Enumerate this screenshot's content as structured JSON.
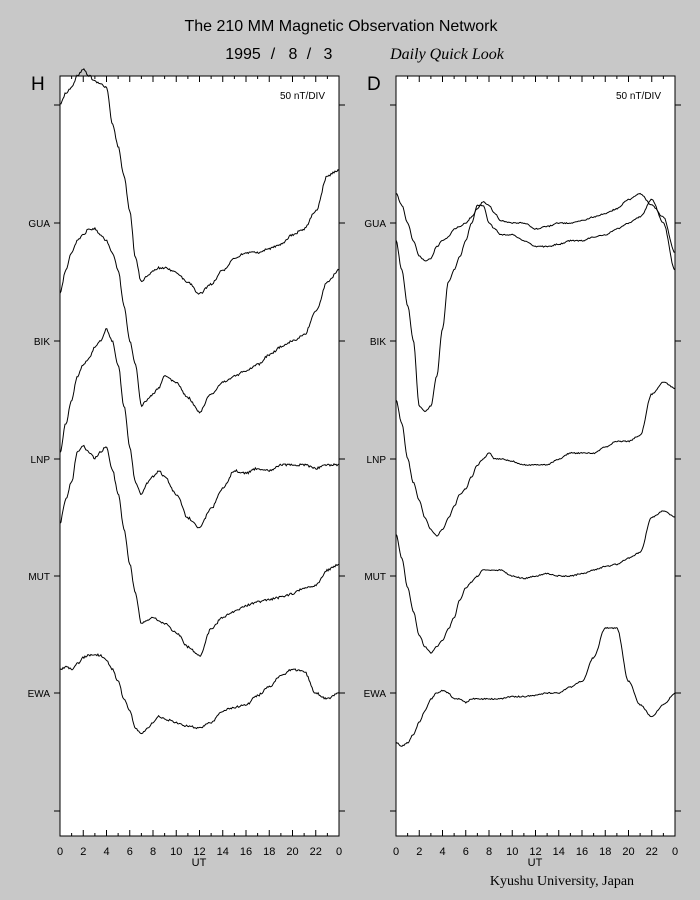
{
  "header": {
    "title": "The 210 MM Magnetic Observation Network",
    "date_year": "1995",
    "date_month": "8",
    "date_day": "3",
    "date_separator": "/",
    "subtitle": "Daily Quick Look"
  },
  "credit": "Kyushu University, Japan",
  "colors": {
    "background": "#c8c8c8",
    "plot_area": "#ffffff",
    "trace": "#000000"
  },
  "chart_data": [
    {
      "type": "line",
      "panel_label": "H",
      "scale_label": "50 nT/DIV",
      "xlabel": "UT",
      "xlim": [
        0,
        24
      ],
      "x_tick_labels": [
        "0",
        "2",
        "4",
        "6",
        "8",
        "10",
        "12",
        "14",
        "16",
        "18",
        "20",
        "22",
        "0"
      ],
      "stations": [
        "GUA",
        "BIK",
        "LNP",
        "MUT",
        "EWA"
      ],
      "y_unit": "divisions relative to station baseline",
      "series": [
        {
          "name": "GUA",
          "x": [
            0,
            0.5,
            1,
            1.5,
            2,
            2.5,
            3,
            3.5,
            4,
            4.5,
            5,
            5.5,
            6,
            6.5,
            7,
            7.5,
            8,
            8.5,
            9,
            10,
            11,
            12,
            13,
            14,
            15,
            16,
            17,
            18,
            19,
            20,
            21,
            22,
            23,
            24
          ],
          "y": [
            1.0,
            1.1,
            1.15,
            1.25,
            1.3,
            1.25,
            1.2,
            1.18,
            1.15,
            0.85,
            0.65,
            0.4,
            0.1,
            -0.3,
            -0.5,
            -0.45,
            -0.4,
            -0.38,
            -0.38,
            -0.42,
            -0.5,
            -0.6,
            -0.52,
            -0.4,
            -0.3,
            -0.25,
            -0.25,
            -0.22,
            -0.18,
            -0.1,
            -0.05,
            0.1,
            0.4,
            0.45
          ]
        },
        {
          "name": "BIK",
          "x": [
            0,
            0.5,
            1,
            1.5,
            2,
            2.5,
            3,
            3.5,
            4,
            4.5,
            5,
            5.5,
            6,
            6.5,
            7,
            7.5,
            8,
            8.5,
            9,
            10,
            11,
            12,
            13,
            14,
            15,
            16,
            17,
            18,
            19,
            20,
            21,
            22,
            23,
            24
          ],
          "y": [
            0.4,
            0.6,
            0.75,
            0.85,
            0.9,
            0.95,
            0.95,
            0.9,
            0.85,
            0.75,
            0.6,
            0.3,
            0.0,
            -0.2,
            -0.55,
            -0.5,
            -0.45,
            -0.4,
            -0.3,
            -0.35,
            -0.48,
            -0.6,
            -0.45,
            -0.35,
            -0.3,
            -0.25,
            -0.2,
            -0.12,
            -0.05,
            0.0,
            0.05,
            0.25,
            0.5,
            0.6
          ]
        },
        {
          "name": "LNP",
          "x": [
            0,
            0.5,
            1,
            1.5,
            2,
            2.5,
            3,
            3.5,
            4,
            4.5,
            5,
            5.5,
            6,
            6.5,
            7,
            7.5,
            8,
            8.5,
            9,
            10,
            11,
            12,
            13,
            14,
            15,
            16,
            17,
            18,
            19,
            20,
            21,
            22,
            23,
            24
          ],
          "y": [
            0.05,
            0.3,
            0.5,
            0.7,
            0.8,
            0.85,
            0.95,
            1.0,
            1.1,
            1.0,
            0.8,
            0.45,
            0.1,
            -0.2,
            -0.3,
            -0.2,
            -0.15,
            -0.1,
            -0.15,
            -0.3,
            -0.5,
            -0.58,
            -0.42,
            -0.25,
            -0.1,
            -0.12,
            -0.08,
            -0.1,
            -0.05,
            -0.05,
            -0.05,
            -0.08,
            -0.05,
            -0.05
          ]
        },
        {
          "name": "MUT",
          "x": [
            0,
            0.5,
            1,
            1.5,
            2,
            2.5,
            3,
            3.5,
            4,
            4.5,
            5,
            5.5,
            6,
            6.5,
            7,
            7.5,
            8,
            8.5,
            9,
            10,
            11,
            12,
            13,
            14,
            15,
            16,
            17,
            18,
            19,
            20,
            21,
            22,
            23,
            24
          ],
          "y": [
            0.45,
            0.65,
            0.8,
            1.05,
            1.1,
            1.05,
            1.0,
            1.05,
            1.1,
            0.9,
            0.7,
            0.4,
            0.1,
            -0.15,
            -0.4,
            -0.38,
            -0.35,
            -0.38,
            -0.4,
            -0.48,
            -0.6,
            -0.68,
            -0.45,
            -0.35,
            -0.3,
            -0.25,
            -0.22,
            -0.2,
            -0.18,
            -0.15,
            -0.1,
            -0.08,
            0.05,
            0.1
          ]
        },
        {
          "name": "EWA",
          "x": [
            0,
            0.5,
            1,
            1.5,
            2,
            2.5,
            3,
            3.5,
            4,
            4.5,
            5,
            5.5,
            6,
            6.5,
            7,
            7.5,
            8,
            8.5,
            9,
            10,
            11,
            12,
            13,
            14,
            15,
            16,
            17,
            18,
            19,
            20,
            21,
            22,
            23,
            24
          ],
          "y": [
            0.2,
            0.22,
            0.2,
            0.25,
            0.3,
            0.32,
            0.32,
            0.32,
            0.28,
            0.2,
            0.1,
            -0.05,
            -0.15,
            -0.3,
            -0.35,
            -0.3,
            -0.25,
            -0.2,
            -0.22,
            -0.25,
            -0.28,
            -0.3,
            -0.25,
            -0.15,
            -0.12,
            -0.1,
            -0.02,
            0.05,
            0.15,
            0.2,
            0.18,
            0.0,
            -0.05,
            0.0
          ]
        }
      ]
    },
    {
      "type": "line",
      "panel_label": "D",
      "scale_label": "50 nT/DIV",
      "xlabel": "UT",
      "xlim": [
        0,
        24
      ],
      "x_tick_labels": [
        "0",
        "2",
        "4",
        "6",
        "8",
        "10",
        "12",
        "14",
        "16",
        "18",
        "20",
        "22",
        "0"
      ],
      "stations": [
        "GUA",
        "BIK",
        "LNP",
        "MUT",
        "EWA"
      ],
      "y_unit": "divisions relative to station baseline",
      "series": [
        {
          "name": "GUA",
          "x": [
            0,
            0.5,
            1,
            1.5,
            2,
            2.5,
            3,
            3.5,
            4,
            4.5,
            5,
            5.5,
            6,
            6.5,
            7,
            7.5,
            8,
            8.5,
            9,
            10,
            11,
            12,
            13,
            14,
            15,
            16,
            17,
            18,
            19,
            20,
            21,
            22,
            23,
            24
          ],
          "y": [
            0.25,
            0.15,
            0.0,
            -0.15,
            -0.28,
            -0.32,
            -0.3,
            -0.2,
            -0.15,
            -0.12,
            -0.05,
            -0.03,
            0.0,
            0.05,
            0.12,
            0.18,
            0.15,
            0.08,
            0.02,
            0.0,
            0.0,
            -0.05,
            -0.03,
            0.0,
            0.0,
            0.02,
            0.05,
            0.08,
            0.12,
            0.2,
            0.25,
            0.15,
            0.05,
            -0.25
          ]
        },
        {
          "name": "BIK",
          "x": [
            0,
            0.5,
            1,
            1.5,
            2,
            2.5,
            3,
            3.5,
            4,
            4.5,
            5,
            5.5,
            6,
            6.5,
            7,
            7.5,
            8,
            8.5,
            9,
            10,
            11,
            12,
            13,
            14,
            15,
            16,
            17,
            18,
            19,
            20,
            21,
            22,
            23,
            24
          ],
          "y": [
            0.85,
            0.6,
            0.3,
            0.0,
            -0.55,
            -0.6,
            -0.55,
            -0.3,
            0.1,
            0.5,
            0.6,
            0.72,
            0.85,
            1.0,
            1.15,
            1.15,
            1.0,
            0.95,
            0.9,
            0.9,
            0.85,
            0.8,
            0.8,
            0.82,
            0.85,
            0.85,
            0.88,
            0.9,
            0.95,
            1.0,
            1.05,
            1.2,
            1.0,
            0.6
          ]
        },
        {
          "name": "LNP",
          "x": [
            0,
            0.5,
            1,
            1.5,
            2,
            2.5,
            3,
            3.5,
            4,
            4.5,
            5,
            5.5,
            6,
            6.5,
            7,
            7.5,
            8,
            8.5,
            9,
            10,
            11,
            12,
            13,
            14,
            15,
            16,
            17,
            18,
            19,
            20,
            21,
            22,
            23,
            24
          ],
          "y": [
            0.5,
            0.3,
            0.0,
            -0.2,
            -0.35,
            -0.5,
            -0.6,
            -0.65,
            -0.6,
            -0.5,
            -0.4,
            -0.3,
            -0.25,
            -0.15,
            -0.05,
            0.0,
            0.05,
            0.0,
            0.0,
            -0.02,
            -0.05,
            -0.05,
            -0.05,
            0.0,
            0.05,
            0.05,
            0.05,
            0.1,
            0.15,
            0.15,
            0.2,
            0.55,
            0.65,
            0.6
          ]
        },
        {
          "name": "MUT",
          "x": [
            0,
            0.5,
            1,
            1.5,
            2,
            2.5,
            3,
            3.5,
            4,
            4.5,
            5,
            5.5,
            6,
            6.5,
            7,
            7.5,
            8,
            8.5,
            9,
            10,
            11,
            12,
            13,
            14,
            15,
            16,
            17,
            18,
            19,
            20,
            21,
            22,
            23,
            24
          ],
          "y": [
            0.35,
            0.15,
            -0.1,
            -0.3,
            -0.5,
            -0.6,
            -0.65,
            -0.6,
            -0.55,
            -0.45,
            -0.35,
            -0.2,
            -0.1,
            -0.05,
            0.0,
            0.05,
            0.05,
            0.05,
            0.05,
            0.0,
            -0.02,
            0.0,
            0.02,
            0.0,
            0.0,
            0.02,
            0.05,
            0.08,
            0.1,
            0.15,
            0.2,
            0.5,
            0.55,
            0.5
          ]
        },
        {
          "name": "EWA",
          "x": [
            0,
            0.5,
            1,
            1.5,
            2,
            2.5,
            3,
            3.5,
            4,
            4.5,
            5,
            5.5,
            6,
            6.5,
            7,
            7.5,
            8,
            8.5,
            9,
            10,
            11,
            12,
            13,
            14,
            15,
            16,
            17,
            18,
            19,
            20,
            21,
            22,
            23,
            24
          ],
          "y": [
            -0.42,
            -0.45,
            -0.42,
            -0.35,
            -0.25,
            -0.15,
            -0.05,
            0.0,
            0.02,
            0.0,
            -0.05,
            -0.05,
            -0.08,
            -0.05,
            -0.05,
            -0.05,
            -0.05,
            -0.05,
            -0.05,
            -0.03,
            -0.03,
            -0.02,
            0.0,
            0.0,
            0.05,
            0.1,
            0.3,
            0.55,
            0.55,
            0.1,
            -0.1,
            -0.2,
            -0.1,
            0.0
          ]
        }
      ]
    }
  ]
}
